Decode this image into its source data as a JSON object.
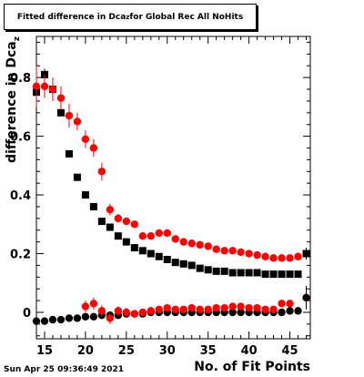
{
  "title_parts": {
    "pre": "Fitted difference in Dca",
    "sub": "z",
    "post": " for Global Rec All NoHits"
  },
  "timestamp": "Sun Apr 25 09:36:49 2021",
  "colors": {
    "series_red": "#ff0000",
    "series_black": "#000000",
    "axis": "#000000"
  },
  "chart_data": {
    "type": "scatter",
    "xlabel": "No. of Fit Points",
    "ylabel_parts": {
      "pre": "difference in Dca",
      "sub": "z"
    },
    "xlim": [
      14,
      47.5
    ],
    "ylim": [
      -0.09,
      0.94
    ],
    "xticks": [
      15,
      20,
      25,
      30,
      35,
      40,
      45
    ],
    "yticks": [
      0,
      0.2,
      0.4,
      0.6,
      0.8
    ],
    "ytick_labels": [
      "0",
      "0.2",
      "0.4",
      "0.6",
      "0.8"
    ],
    "series": [
      {
        "color": "#000000",
        "marker": "square",
        "x": [
          14,
          15,
          16,
          17,
          18,
          19,
          20,
          21,
          22,
          23,
          24,
          25,
          26,
          27,
          28,
          29,
          30,
          31,
          32,
          33,
          34,
          35,
          36,
          37,
          38,
          39,
          40,
          41,
          42,
          43,
          44,
          45,
          46,
          47
        ],
        "y": [
          0.75,
          0.81,
          0.76,
          0.68,
          0.54,
          0.46,
          0.4,
          0.36,
          0.31,
          0.29,
          0.26,
          0.24,
          0.22,
          0.21,
          0.2,
          0.19,
          0.18,
          0.17,
          0.165,
          0.16,
          0.15,
          0.145,
          0.14,
          0.14,
          0.135,
          0.135,
          0.135,
          0.135,
          0.13,
          0.13,
          0.13,
          0.13,
          0.13,
          0.2
        ],
        "err": [
          0.09,
          0.02,
          0.02,
          0.01,
          0.01,
          0.01,
          0.005,
          0.005,
          0.005,
          0.005,
          0.005,
          0.005,
          0.005,
          0.005,
          0.005,
          0.005,
          0.005,
          0.005,
          0.005,
          0.005,
          0.005,
          0.005,
          0.005,
          0.005,
          0.005,
          0.005,
          0.005,
          0.005,
          0.005,
          0.005,
          0.005,
          0.005,
          0.005,
          0.02
        ]
      },
      {
        "color": "#ff0000",
        "marker": "circle",
        "x": [
          14,
          15,
          16,
          17,
          18,
          19,
          20,
          21,
          22,
          23,
          24,
          25,
          26,
          27,
          28,
          29,
          30,
          31,
          32,
          33,
          34,
          35,
          36,
          37,
          38,
          39,
          40,
          41,
          42,
          43,
          44,
          45,
          46
        ],
        "y": [
          0.77,
          0.77,
          0.76,
          0.73,
          0.67,
          0.65,
          0.59,
          0.56,
          0.48,
          0.35,
          0.32,
          0.31,
          0.3,
          0.26,
          0.26,
          0.27,
          0.27,
          0.25,
          0.24,
          0.235,
          0.23,
          0.225,
          0.215,
          0.21,
          0.21,
          0.205,
          0.2,
          0.195,
          0.19,
          0.185,
          0.185,
          0.185,
          0.19
        ],
        "err": [
          0.07,
          0.04,
          0.04,
          0.04,
          0.04,
          0.03,
          0.03,
          0.03,
          0.03,
          0.02,
          0.015,
          0.01,
          0.01,
          0.01,
          0.01,
          0.01,
          0.01,
          0.01,
          0.01,
          0.01,
          0.01,
          0.01,
          0.01,
          0.01,
          0.01,
          0.01,
          0.01,
          0.01,
          0.01,
          0.01,
          0.01,
          0.01,
          0.01
        ]
      },
      {
        "color": "#000000",
        "marker": "circle",
        "x": [
          14,
          15,
          16,
          17,
          18,
          19,
          20,
          21,
          22,
          23,
          24,
          25,
          26,
          27,
          28,
          29,
          30,
          31,
          32,
          33,
          34,
          35,
          36,
          37,
          38,
          39,
          40,
          41,
          42,
          43,
          44,
          45,
          46,
          47
        ],
        "y": [
          -0.03,
          -0.03,
          -0.025,
          -0.025,
          -0.02,
          -0.02,
          -0.015,
          -0.015,
          -0.01,
          -0.01,
          -0.01,
          -0.005,
          -0.005,
          -0.005,
          0,
          0,
          0,
          0,
          0,
          0,
          0,
          0,
          0,
          0,
          0,
          0,
          0,
          0,
          0,
          0,
          0,
          0.005,
          0.005,
          0.05
        ],
        "err": [
          0.005,
          0.005,
          0.005,
          0.005,
          0.005,
          0.005,
          0.005,
          0.005,
          0.005,
          0.005,
          0.005,
          0.005,
          0.005,
          0.005,
          0.005,
          0.005,
          0.005,
          0.005,
          0.005,
          0.005,
          0.005,
          0.005,
          0.005,
          0.005,
          0.005,
          0.005,
          0.005,
          0.005,
          0.005,
          0.005,
          0.005,
          0.005,
          0.005,
          0.04
        ]
      },
      {
        "color": "#ff0000",
        "marker": "circle",
        "x": [
          20,
          21,
          22,
          23,
          24,
          25,
          26,
          27,
          28,
          29,
          30,
          31,
          32,
          33,
          34,
          35,
          36,
          37,
          38,
          39,
          40,
          41,
          42,
          43,
          44,
          45
        ],
        "y": [
          0.02,
          0.03,
          0.005,
          -0.02,
          0.005,
          0,
          -0.005,
          0,
          0.005,
          0.01,
          0.015,
          0.01,
          0.01,
          0.015,
          0.01,
          0.01,
          0.015,
          0.015,
          0.02,
          0.02,
          0.015,
          0.015,
          0.01,
          0.01,
          0.03,
          0.03
        ],
        "err": [
          0.02,
          0.02,
          0.02,
          0.02,
          0.015,
          0.015,
          0.01,
          0.01,
          0.01,
          0.01,
          0.01,
          0.01,
          0.01,
          0.01,
          0.01,
          0.01,
          0.01,
          0.01,
          0.01,
          0.01,
          0.01,
          0.01,
          0.01,
          0.01,
          0.01,
          0.01
        ]
      }
    ]
  }
}
